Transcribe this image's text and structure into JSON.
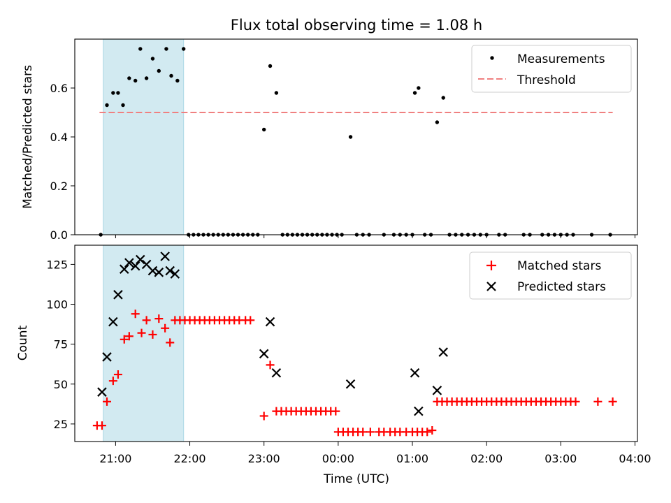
{
  "chart_data": [
    {
      "type": "scatter",
      "title": "Flux total observing time = 1.08 h",
      "ylabel": "Matched/Predicted stars",
      "xlabel": "",
      "ylim": [
        0,
        0.8
      ],
      "yticks": [
        0.0,
        0.2,
        0.4,
        0.6
      ],
      "ytick_labels": [
        "0.0",
        "0.2",
        "0.4",
        "0.6"
      ],
      "shaded_x_range": [
        "20:50",
        "21:55"
      ],
      "legend_position": "top-right",
      "series": [
        {
          "name": "Measurements",
          "marker": "dot",
          "color": "#000000",
          "points": [
            [
              "20:48",
              0.0
            ],
            [
              "20:53",
              0.53
            ],
            [
              "20:58",
              0.58
            ],
            [
              "21:02",
              0.58
            ],
            [
              "21:06",
              0.53
            ],
            [
              "21:11",
              0.64
            ],
            [
              "21:16",
              0.63
            ],
            [
              "21:20",
              0.76
            ],
            [
              "21:25",
              0.64
            ],
            [
              "21:30",
              0.72
            ],
            [
              "21:35",
              0.67
            ],
            [
              "21:41",
              0.76
            ],
            [
              "21:45",
              0.65
            ],
            [
              "21:50",
              0.63
            ],
            [
              "21:55",
              0.76
            ],
            [
              "21:59",
              0.0
            ],
            [
              "22:03",
              0.0
            ],
            [
              "22:07",
              0.0
            ],
            [
              "22:11",
              0.0
            ],
            [
              "22:15",
              0.0
            ],
            [
              "22:19",
              0.0
            ],
            [
              "22:23",
              0.0
            ],
            [
              "22:27",
              0.0
            ],
            [
              "22:31",
              0.0
            ],
            [
              "22:35",
              0.0
            ],
            [
              "22:39",
              0.0
            ],
            [
              "22:43",
              0.0
            ],
            [
              "22:47",
              0.0
            ],
            [
              "22:51",
              0.0
            ],
            [
              "22:55",
              0.0
            ],
            [
              "23:00",
              0.43
            ],
            [
              "23:05",
              0.69
            ],
            [
              "23:10",
              0.58
            ],
            [
              "23:15",
              0.0
            ],
            [
              "23:19",
              0.0
            ],
            [
              "23:23",
              0.0
            ],
            [
              "23:27",
              0.0
            ],
            [
              "23:31",
              0.0
            ],
            [
              "23:35",
              0.0
            ],
            [
              "23:39",
              0.0
            ],
            [
              "23:43",
              0.0
            ],
            [
              "23:47",
              0.0
            ],
            [
              "23:51",
              0.0
            ],
            [
              "23:55",
              0.0
            ],
            [
              "23:59",
              0.0
            ],
            [
              "00:03",
              0.0
            ],
            [
              "00:10",
              0.4
            ],
            [
              "00:15",
              0.0
            ],
            [
              "00:20",
              0.0
            ],
            [
              "00:25",
              0.0
            ],
            [
              "00:37",
              0.0
            ],
            [
              "00:45",
              0.0
            ],
            [
              "00:50",
              0.0
            ],
            [
              "00:55",
              0.0
            ],
            [
              "01:00",
              0.0
            ],
            [
              "01:02",
              0.58
            ],
            [
              "01:05",
              0.6
            ],
            [
              "01:10",
              0.0
            ],
            [
              "01:15",
              0.0
            ],
            [
              "01:20",
              0.46
            ],
            [
              "01:25",
              0.56
            ],
            [
              "01:30",
              0.0
            ],
            [
              "01:35",
              0.0
            ],
            [
              "01:40",
              0.0
            ],
            [
              "01:45",
              0.0
            ],
            [
              "01:50",
              0.0
            ],
            [
              "01:55",
              0.0
            ],
            [
              "02:00",
              0.0
            ],
            [
              "02:10",
              0.0
            ],
            [
              "02:15",
              0.0
            ],
            [
              "02:30",
              0.0
            ],
            [
              "02:35",
              0.0
            ],
            [
              "02:45",
              0.0
            ],
            [
              "02:50",
              0.0
            ],
            [
              "02:55",
              0.0
            ],
            [
              "03:00",
              0.0
            ],
            [
              "03:05",
              0.0
            ],
            [
              "03:10",
              0.0
            ],
            [
              "03:25",
              0.0
            ],
            [
              "03:40",
              0.0
            ]
          ]
        },
        {
          "name": "Threshold",
          "marker": "dashed-line",
          "color": "#f08080",
          "points": [
            [
              "20:47",
              0.5
            ],
            [
              "03:42",
              0.5
            ]
          ]
        }
      ]
    },
    {
      "type": "scatter",
      "ylabel": "Count",
      "xlabel": "Time (UTC)",
      "ylim": [
        14,
        137
      ],
      "yticks": [
        25,
        50,
        75,
        100,
        125
      ],
      "ytick_labels": [
        "25",
        "50",
        "75",
        "100",
        "125"
      ],
      "x_range": [
        "20:27",
        "04:02"
      ],
      "xticks": [
        "21:00",
        "22:00",
        "23:00",
        "00:00",
        "01:00",
        "02:00",
        "03:00",
        "04:00"
      ],
      "xtick_labels": [
        "21:00",
        "22:00",
        "23:00",
        "00:00",
        "01:00",
        "02:00",
        "03:00",
        "04:00"
      ],
      "shaded_x_range": [
        "20:50",
        "21:55"
      ],
      "legend_position": "top-right",
      "series": [
        {
          "name": "Matched stars",
          "marker": "plus",
          "color": "#ff0000",
          "points": [
            [
              "20:45",
              24
            ],
            [
              "20:49",
              24
            ],
            [
              "20:53",
              39
            ],
            [
              "20:58",
              52
            ],
            [
              "21:02",
              56
            ],
            [
              "21:07",
              78
            ],
            [
              "21:11",
              80
            ],
            [
              "21:16",
              94
            ],
            [
              "21:21",
              82
            ],
            [
              "21:25",
              90
            ],
            [
              "21:30",
              81
            ],
            [
              "21:35",
              91
            ],
            [
              "21:40",
              85
            ],
            [
              "21:44",
              76
            ],
            [
              "21:48",
              90
            ],
            [
              "21:52",
              90
            ],
            [
              "21:56",
              90
            ],
            [
              "22:00",
              90
            ],
            [
              "22:04",
              90
            ],
            [
              "22:08",
              90
            ],
            [
              "22:12",
              90
            ],
            [
              "22:16",
              90
            ],
            [
              "22:20",
              90
            ],
            [
              "22:24",
              90
            ],
            [
              "22:28",
              90
            ],
            [
              "22:32",
              90
            ],
            [
              "22:36",
              90
            ],
            [
              "22:40",
              90
            ],
            [
              "22:45",
              90
            ],
            [
              "22:49",
              90
            ],
            [
              "23:00",
              30
            ],
            [
              "23:05",
              62
            ],
            [
              "23:10",
              33
            ],
            [
              "23:14",
              33
            ],
            [
              "23:18",
              33
            ],
            [
              "23:22",
              33
            ],
            [
              "23:26",
              33
            ],
            [
              "23:30",
              33
            ],
            [
              "23:34",
              33
            ],
            [
              "23:38",
              33
            ],
            [
              "23:42",
              33
            ],
            [
              "23:46",
              33
            ],
            [
              "23:50",
              33
            ],
            [
              "23:54",
              33
            ],
            [
              "23:58",
              33
            ],
            [
              "00:00",
              20
            ],
            [
              "00:04",
              20
            ],
            [
              "00:08",
              20
            ],
            [
              "00:12",
              20
            ],
            [
              "00:16",
              20
            ],
            [
              "00:20",
              20
            ],
            [
              "00:26",
              20
            ],
            [
              "00:33",
              20
            ],
            [
              "00:37",
              20
            ],
            [
              "00:42",
              20
            ],
            [
              "00:46",
              20
            ],
            [
              "00:50",
              20
            ],
            [
              "00:55",
              20
            ],
            [
              "01:00",
              20
            ],
            [
              "01:04",
              20
            ],
            [
              "01:08",
              20
            ],
            [
              "01:12",
              20
            ],
            [
              "01:16",
              21
            ],
            [
              "01:20",
              39
            ],
            [
              "01:24",
              39
            ],
            [
              "01:28",
              39
            ],
            [
              "01:32",
              39
            ],
            [
              "01:36",
              39
            ],
            [
              "01:40",
              39
            ],
            [
              "01:44",
              39
            ],
            [
              "01:48",
              39
            ],
            [
              "01:52",
              39
            ],
            [
              "01:56",
              39
            ],
            [
              "02:00",
              39
            ],
            [
              "02:04",
              39
            ],
            [
              "02:08",
              39
            ],
            [
              "02:12",
              39
            ],
            [
              "02:16",
              39
            ],
            [
              "02:20",
              39
            ],
            [
              "02:24",
              39
            ],
            [
              "02:28",
              39
            ],
            [
              "02:32",
              39
            ],
            [
              "02:36",
              39
            ],
            [
              "02:40",
              39
            ],
            [
              "02:44",
              39
            ],
            [
              "02:48",
              39
            ],
            [
              "02:52",
              39
            ],
            [
              "02:56",
              39
            ],
            [
              "03:00",
              39
            ],
            [
              "03:04",
              39
            ],
            [
              "03:08",
              39
            ],
            [
              "03:12",
              39
            ],
            [
              "03:30",
              39
            ],
            [
              "03:42",
              39
            ]
          ]
        },
        {
          "name": "Predicted stars",
          "marker": "x",
          "color": "#000000",
          "points": [
            [
              "20:49",
              45
            ],
            [
              "20:53",
              67
            ],
            [
              "20:58",
              89
            ],
            [
              "21:02",
              106
            ],
            [
              "21:07",
              122
            ],
            [
              "21:11",
              126
            ],
            [
              "21:16",
              124
            ],
            [
              "21:20",
              128
            ],
            [
              "21:25",
              125
            ],
            [
              "21:30",
              121
            ],
            [
              "21:35",
              120
            ],
            [
              "21:40",
              130
            ],
            [
              "21:44",
              121
            ],
            [
              "21:48",
              119
            ],
            [
              "23:00",
              69
            ],
            [
              "23:05",
              89
            ],
            [
              "23:10",
              57
            ],
            [
              "00:10",
              50
            ],
            [
              "01:02",
              57
            ],
            [
              "01:05",
              33
            ],
            [
              "01:20",
              46
            ],
            [
              "01:25",
              70
            ]
          ]
        }
      ]
    }
  ]
}
